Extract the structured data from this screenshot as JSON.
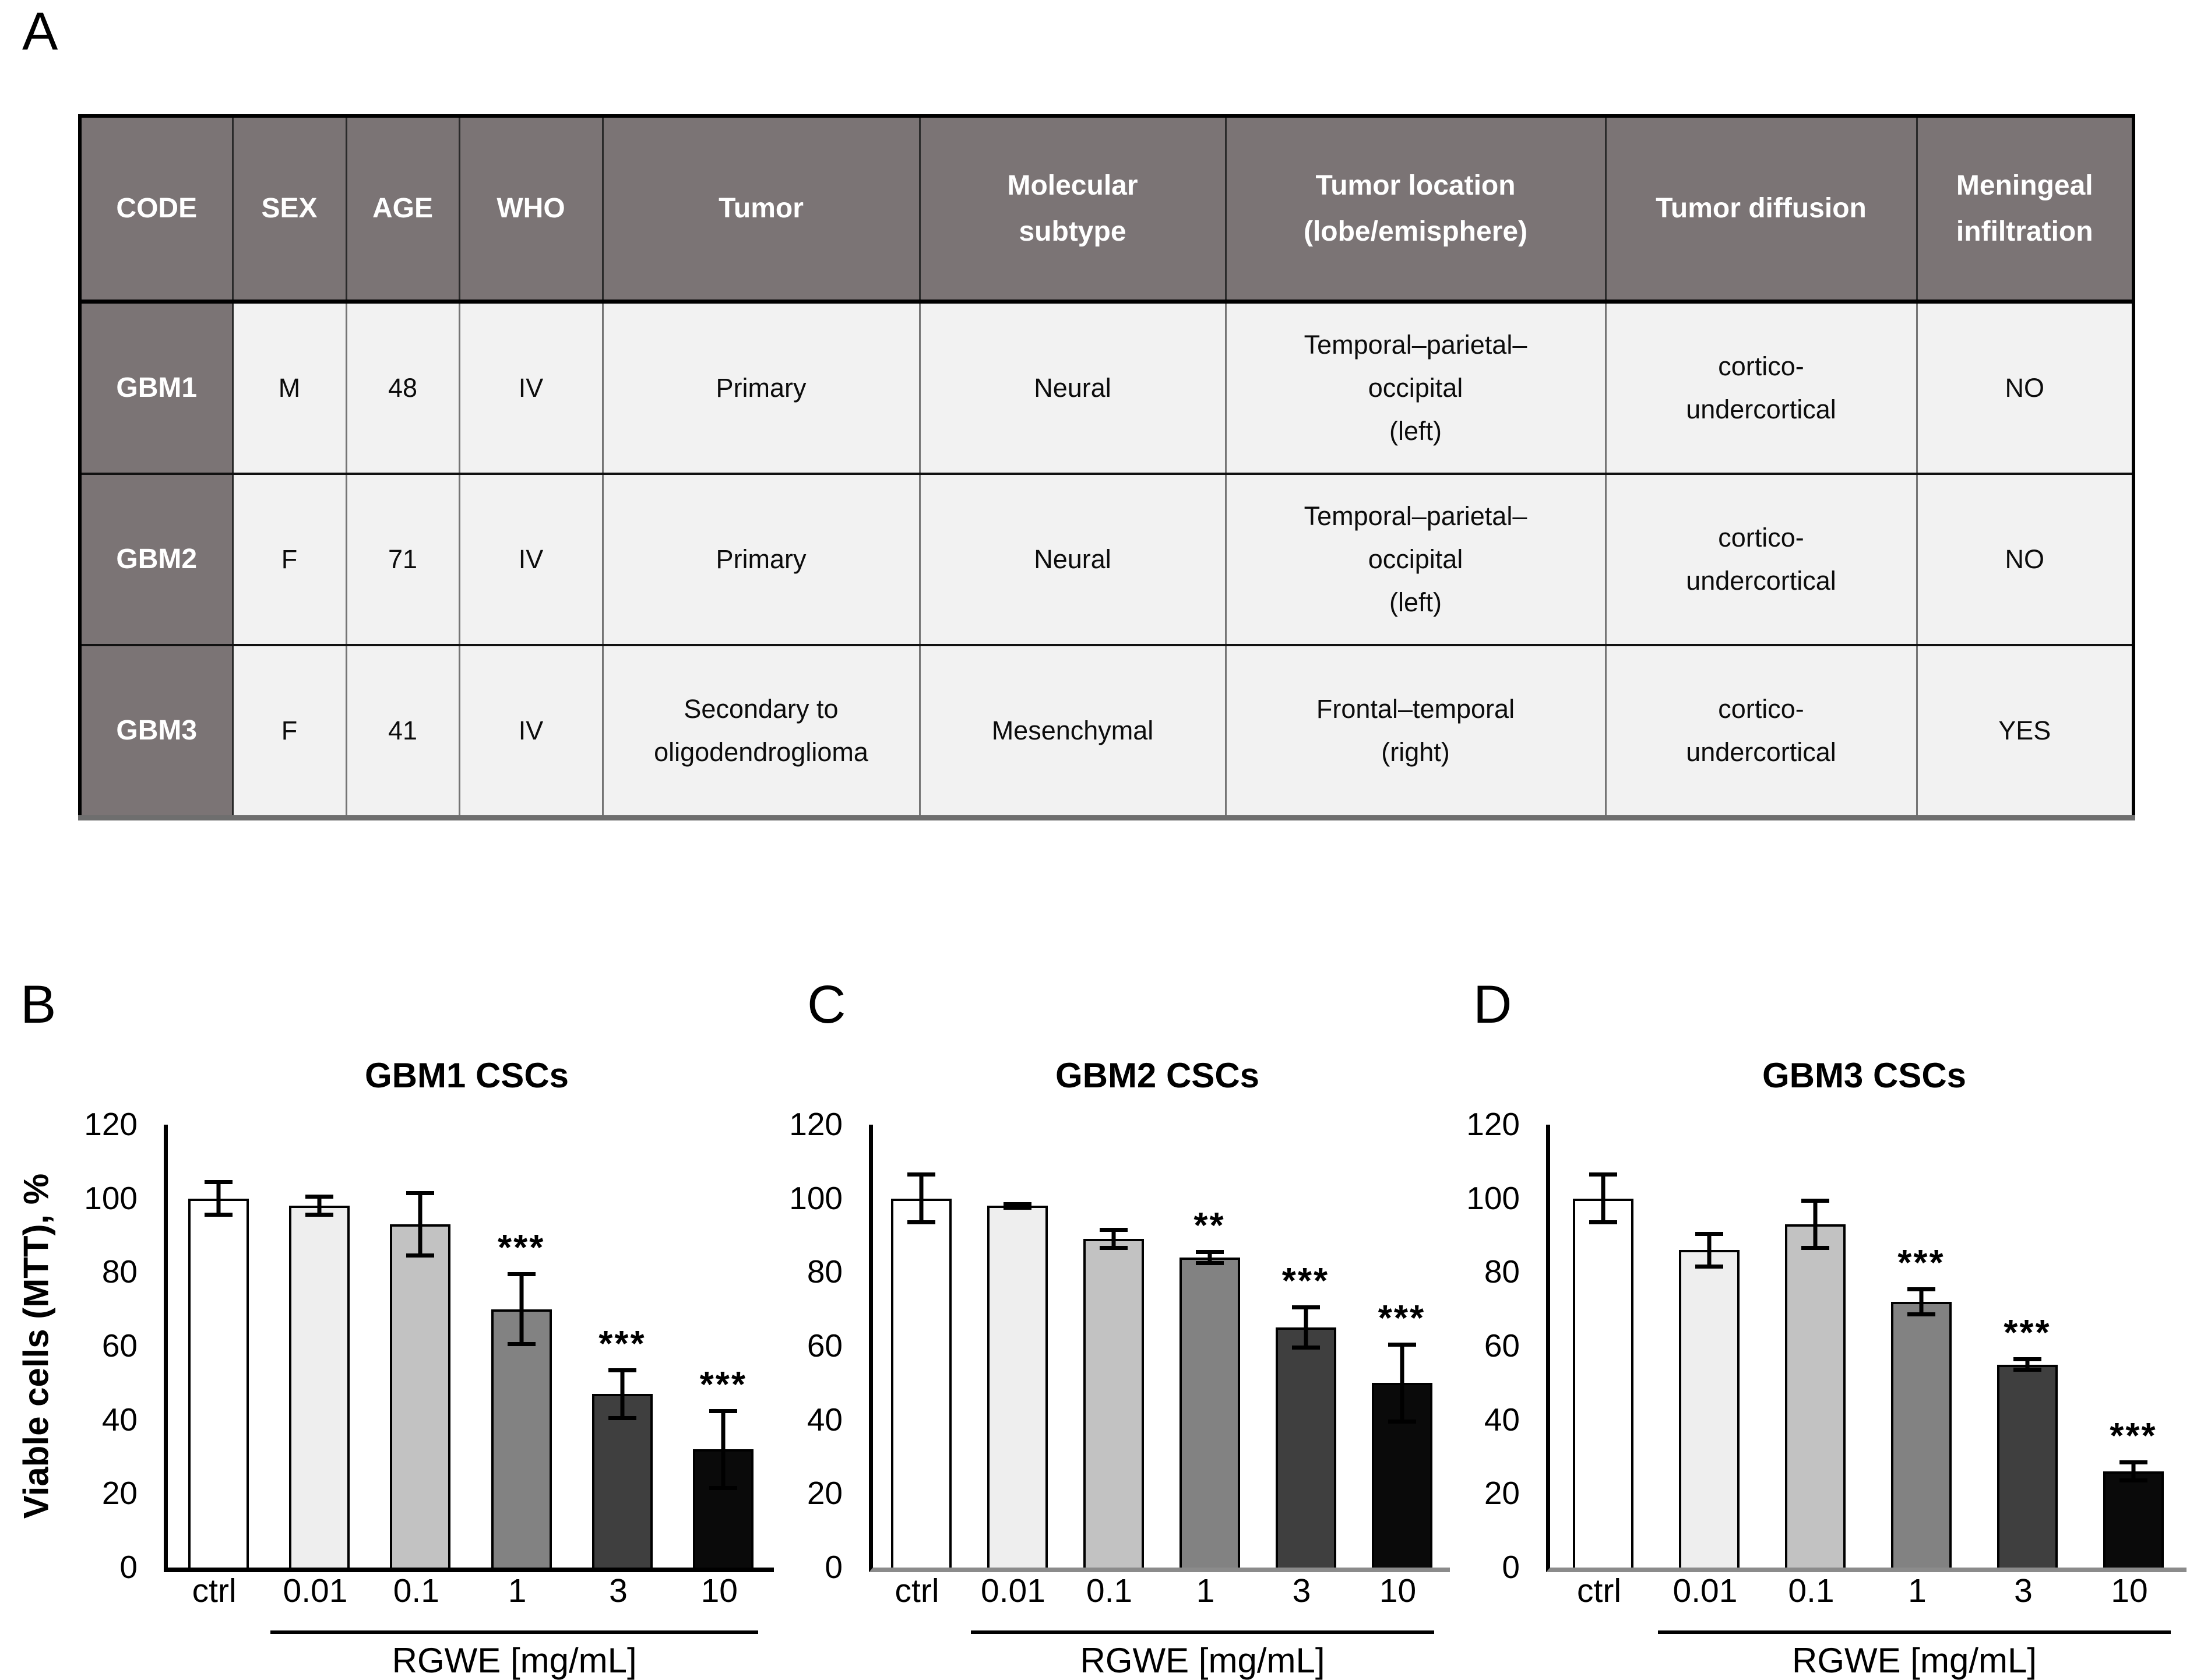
{
  "panels": {
    "a": "A",
    "b": "B",
    "c": "C",
    "d": "D"
  },
  "table": {
    "header_bg": "#7b7475",
    "cell_bg": "#f2f2f2",
    "headers": [
      "CODE",
      "SEX",
      "AGE",
      "WHO",
      "Tumor",
      "Molecular\nsubtype",
      "Tumor location\n(lobe/emisphere)",
      "Tumor diffusion",
      "Meningeal\ninfiltration"
    ],
    "rows": [
      [
        "GBM1",
        "M",
        "48",
        "IV",
        "Primary",
        "Neural",
        "Temporal–parietal–\noccipital\n(left)",
        "cortico-\nundercortical",
        "NO"
      ],
      [
        "GBM2",
        "F",
        "71",
        "IV",
        "Primary",
        "Neural",
        "Temporal–parietal–\noccipital\n(left)",
        "cortico-\nundercortical",
        "NO"
      ],
      [
        "GBM3",
        "F",
        "41",
        "IV",
        "Secondary to\noligodendroglioma",
        "Mesenchymal",
        "Frontal–temporal\n(right)",
        "cortico-\nundercortical",
        "YES"
      ]
    ]
  },
  "chart_data": [
    {
      "type": "bar",
      "panel": "B",
      "title": "GBM1 CSCs",
      "ylabel": "Viable cells (MTT), %",
      "xlabel": "RGWE [mg/mL]",
      "categories": [
        "ctrl",
        "0.01",
        "0.1",
        "1",
        "3",
        "10"
      ],
      "values": [
        100,
        98,
        93,
        70,
        47,
        32
      ],
      "errors": [
        5,
        3,
        9,
        10,
        7,
        11
      ],
      "significance": [
        "",
        "",
        "",
        "***",
        "***",
        "***"
      ],
      "ylim": [
        0,
        120
      ],
      "yticks": [
        0,
        20,
        40,
        60,
        80,
        100,
        120
      ],
      "grid": false,
      "legend": "none",
      "bar_colors": [
        "#ffffff",
        "#eeeeee",
        "#c2c2c2",
        "#828282",
        "#3f3f3f",
        "#0a0a0a"
      ]
    },
    {
      "type": "bar",
      "panel": "C",
      "title": "GBM2 CSCs",
      "ylabel": "Viable cells (MTT), %",
      "xlabel": "RGWE [mg/mL]",
      "categories": [
        "ctrl",
        "0.01",
        "0.1",
        "1",
        "3",
        "10"
      ],
      "values": [
        100,
        98,
        89,
        84,
        65,
        50
      ],
      "errors": [
        7,
        1,
        3,
        2,
        6,
        11
      ],
      "significance": [
        "",
        "",
        "",
        "**",
        "***",
        "***"
      ],
      "ylim": [
        0,
        120
      ],
      "yticks": [
        0,
        20,
        40,
        60,
        80,
        100,
        120
      ],
      "grid": false,
      "legend": "none",
      "bar_colors": [
        "#ffffff",
        "#eeeeee",
        "#c2c2c2",
        "#828282",
        "#3f3f3f",
        "#0a0a0a"
      ]
    },
    {
      "type": "bar",
      "panel": "D",
      "title": "GBM3 CSCs",
      "ylabel": "Viable cells (MTT), %",
      "xlabel": "RGWE [mg/mL]",
      "categories": [
        "ctrl",
        "0.01",
        "0.1",
        "1",
        "3",
        "10"
      ],
      "values": [
        100,
        86,
        93,
        72,
        55,
        26
      ],
      "errors": [
        7,
        5,
        7,
        4,
        2,
        3
      ],
      "significance": [
        "",
        "",
        "",
        "***",
        "***",
        "***"
      ],
      "ylim": [
        0,
        120
      ],
      "yticks": [
        0,
        20,
        40,
        60,
        80,
        100,
        120
      ],
      "grid": false,
      "legend": "none",
      "bar_colors": [
        "#ffffff",
        "#eeeeee",
        "#c2c2c2",
        "#828282",
        "#3f3f3f",
        "#0a0a0a"
      ]
    }
  ]
}
